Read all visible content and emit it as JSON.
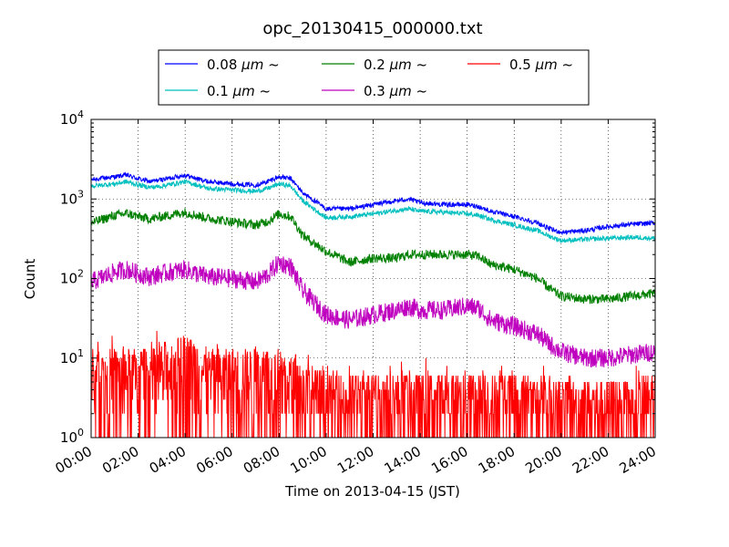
{
  "chart_data": {
    "type": "line",
    "title": "opc_20130415_000000.txt",
    "xlabel": "Time on 2013-04-15 (JST)",
    "ylabel": "Count",
    "yscale": "log",
    "ylim": [
      1,
      10000
    ],
    "xlim": [
      0,
      24
    ],
    "grid": true,
    "legend_position": "top-center",
    "x_ticks": [
      "00:00",
      "02:00",
      "04:00",
      "06:00",
      "08:00",
      "10:00",
      "12:00",
      "14:00",
      "16:00",
      "18:00",
      "20:00",
      "22:00",
      "24:00"
    ],
    "y_ticks": [
      {
        "base": "10",
        "exp": "0"
      },
      {
        "base": "10",
        "exp": "1"
      },
      {
        "base": "10",
        "exp": "2"
      },
      {
        "base": "10",
        "exp": "3"
      },
      {
        "base": "10",
        "exp": "4"
      }
    ],
    "legend_unit": "μm ~",
    "series": [
      {
        "name": "0.08",
        "color": "#0000ff",
        "noise": 0.03,
        "minv": 1,
        "points": [
          [
            0,
            1750
          ],
          [
            1,
            1900
          ],
          [
            1.5,
            2000
          ],
          [
            2,
            1800
          ],
          [
            2.5,
            1650
          ],
          [
            3,
            1750
          ],
          [
            4,
            2000
          ],
          [
            4.5,
            1800
          ],
          [
            5,
            1650
          ],
          [
            6,
            1550
          ],
          [
            7,
            1500
          ],
          [
            7.5,
            1650
          ],
          [
            8,
            1900
          ],
          [
            8.5,
            1800
          ],
          [
            9,
            1200
          ],
          [
            10,
            750
          ],
          [
            11,
            750
          ],
          [
            12,
            850
          ],
          [
            13,
            950
          ],
          [
            13.5,
            1000
          ],
          [
            14,
            900
          ],
          [
            15,
            850
          ],
          [
            16,
            850
          ],
          [
            16.5,
            800
          ],
          [
            17,
            700
          ],
          [
            18,
            600
          ],
          [
            19,
            500
          ],
          [
            19.5,
            420
          ],
          [
            20,
            380
          ],
          [
            21,
            400
          ],
          [
            22,
            450
          ],
          [
            23,
            480
          ],
          [
            24,
            500
          ]
        ]
      },
      {
        "name": "0.1",
        "color": "#00bfbf",
        "noise": 0.03,
        "minv": 1,
        "points": [
          [
            0,
            1450
          ],
          [
            1,
            1550
          ],
          [
            1.5,
            1650
          ],
          [
            2,
            1500
          ],
          [
            2.5,
            1400
          ],
          [
            3,
            1450
          ],
          [
            4,
            1650
          ],
          [
            4.5,
            1500
          ],
          [
            5,
            1350
          ],
          [
            6,
            1300
          ],
          [
            7,
            1250
          ],
          [
            7.5,
            1350
          ],
          [
            8,
            1550
          ],
          [
            8.5,
            1450
          ],
          [
            9,
            950
          ],
          [
            10,
            580
          ],
          [
            11,
            600
          ],
          [
            12,
            650
          ],
          [
            13,
            720
          ],
          [
            13.5,
            750
          ],
          [
            14,
            700
          ],
          [
            15,
            680
          ],
          [
            16,
            650
          ],
          [
            16.5,
            620
          ],
          [
            17,
            550
          ],
          [
            18,
            470
          ],
          [
            19,
            400
          ],
          [
            19.5,
            340
          ],
          [
            20,
            300
          ],
          [
            21,
            310
          ],
          [
            22,
            320
          ],
          [
            23,
            330
          ],
          [
            24,
            320
          ]
        ]
      },
      {
        "name": "0.2",
        "color": "#008000",
        "noise": 0.06,
        "minv": 1,
        "points": [
          [
            0,
            500
          ],
          [
            1,
            620
          ],
          [
            1.5,
            660
          ],
          [
            2,
            600
          ],
          [
            2.5,
            560
          ],
          [
            3,
            600
          ],
          [
            4,
            680
          ],
          [
            4.5,
            620
          ],
          [
            5,
            570
          ],
          [
            6,
            520
          ],
          [
            7,
            470
          ],
          [
            7.5,
            520
          ],
          [
            8,
            650
          ],
          [
            8.5,
            600
          ],
          [
            9,
            350
          ],
          [
            10,
            220
          ],
          [
            11,
            160
          ],
          [
            12,
            180
          ],
          [
            13,
            180
          ],
          [
            13.5,
            200
          ],
          [
            14,
            200
          ],
          [
            15,
            200
          ],
          [
            16,
            200
          ],
          [
            16.5,
            190
          ],
          [
            17,
            150
          ],
          [
            18,
            130
          ],
          [
            19,
            100
          ],
          [
            19.5,
            75
          ],
          [
            20,
            60
          ],
          [
            21,
            55
          ],
          [
            22,
            55
          ],
          [
            23,
            60
          ],
          [
            24,
            65
          ]
        ]
      },
      {
        "name": "0.3",
        "color": "#bf00bf",
        "noise": 0.12,
        "minv": 1,
        "points": [
          [
            0,
            90
          ],
          [
            1,
            120
          ],
          [
            1.5,
            130
          ],
          [
            2,
            115
          ],
          [
            2.5,
            105
          ],
          [
            3,
            115
          ],
          [
            4,
            130
          ],
          [
            4.5,
            115
          ],
          [
            5,
            105
          ],
          [
            6,
            100
          ],
          [
            7,
            90
          ],
          [
            7.5,
            110
          ],
          [
            8,
            160
          ],
          [
            8.5,
            140
          ],
          [
            9,
            70
          ],
          [
            10,
            35
          ],
          [
            11,
            30
          ],
          [
            12,
            35
          ],
          [
            13,
            40
          ],
          [
            13.5,
            45
          ],
          [
            14,
            40
          ],
          [
            15,
            40
          ],
          [
            16,
            45
          ],
          [
            16.5,
            42
          ],
          [
            17,
            30
          ],
          [
            18,
            25
          ],
          [
            19,
            20
          ],
          [
            19.5,
            15
          ],
          [
            20,
            12
          ],
          [
            21,
            10
          ],
          [
            22,
            10
          ],
          [
            23,
            11
          ],
          [
            24,
            12
          ]
        ]
      },
      {
        "name": "0.5",
        "color": "#ff0000",
        "noise": 0.6,
        "minv": 1,
        "points": [
          [
            0,
            5
          ],
          [
            1,
            6
          ],
          [
            2,
            6
          ],
          [
            3,
            7
          ],
          [
            4,
            9
          ],
          [
            4.5,
            8
          ],
          [
            5,
            6
          ],
          [
            6,
            6
          ],
          [
            7,
            6
          ],
          [
            8,
            6
          ],
          [
            9,
            4
          ],
          [
            10,
            3
          ],
          [
            11,
            3
          ],
          [
            12,
            3
          ],
          [
            13,
            3
          ],
          [
            14,
            3
          ],
          [
            15,
            3
          ],
          [
            16,
            3
          ],
          [
            17,
            3
          ],
          [
            18,
            3
          ],
          [
            19,
            2.5
          ],
          [
            20,
            2.5
          ],
          [
            21,
            2.5
          ],
          [
            22,
            2.5
          ],
          [
            23,
            2.5
          ],
          [
            24,
            3
          ]
        ]
      }
    ]
  }
}
